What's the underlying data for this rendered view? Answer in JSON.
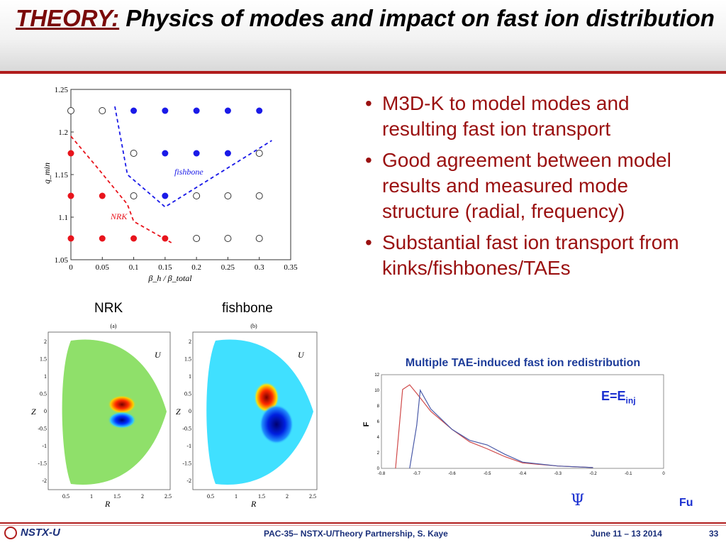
{
  "header": {
    "title_prefix": "THEORY:",
    "title_rest": "Physics of modes and impact on fast ion distribution"
  },
  "bullets": [
    "M3D-K to model modes and resulting fast ion transport",
    "Good agreement between model results and measured mode structure (radial, frequency)",
    "Substantial fast ion transport from kinks/fishbones/TAEs"
  ],
  "scatter_plot": {
    "ylabel": "q_min",
    "xlabel": "β_h / β_total",
    "xticks": [
      "0",
      "0.05",
      "0.1",
      "0.15",
      "0.2",
      "0.25",
      "0.3",
      "0.35"
    ],
    "yticks": [
      "1.25",
      "1.2",
      "1.15",
      "1.1",
      "1.05"
    ],
    "labels": {
      "nrk": "NRK",
      "fishbone": "fishbone"
    }
  },
  "mode_maps": {
    "caption_left": "NRK",
    "caption_right": "fishbone",
    "panel_a": "(a)",
    "panel_b": "(b)",
    "u_label": "U",
    "z_label": "Z",
    "r_label": "R",
    "zticks": [
      "2",
      "1.5",
      "1",
      "0.5",
      "0",
      "-0.5",
      "-1",
      "-1.5",
      "-2"
    ],
    "rticks": [
      "0.5",
      "1",
      "1.5",
      "2",
      "2.5"
    ]
  },
  "tae_plot": {
    "title": "Multiple TAE-induced fast ion redistribution",
    "ylabel": "F",
    "annotation": "E=E",
    "annotation_sub": "inj",
    "psi_label": "Ψ",
    "credit": "Fu",
    "xticks": [
      "-0.8",
      "-0.7",
      "-0.6",
      "-0.5",
      "-0.4",
      "-0.3",
      "-0.2",
      "-0.1",
      "0"
    ],
    "yticks": [
      "12",
      "10",
      "8",
      "6",
      "4",
      "2",
      "0"
    ]
  },
  "footer": {
    "logo": "NSTX-U",
    "center": "PAC-35– NSTX-U/Theory Partnership, S. Kaye",
    "date": "June 11 – 13 2014",
    "page": "33"
  },
  "chart_data": [
    {
      "type": "scatter",
      "xlabel": "β_h / β_total",
      "ylabel": "q_min",
      "xlim": [
        0,
        0.35
      ],
      "ylim": [
        1.05,
        1.25
      ],
      "series": [
        {
          "name": "NRK",
          "color": "#e8141c",
          "x": [
            0,
            0,
            0.05,
            0,
            0.05,
            0.1,
            0.15
          ],
          "y": [
            1.175,
            1.125,
            1.125,
            1.075,
            1.075,
            1.075,
            1.075
          ]
        },
        {
          "name": "fishbone",
          "color": "#1a1ae8",
          "x": [
            0.1,
            0.15,
            0.2,
            0.25,
            0.3,
            0.15,
            0.2,
            0.25,
            0.15
          ],
          "y": [
            1.225,
            1.225,
            1.225,
            1.225,
            1.225,
            1.175,
            1.175,
            1.175,
            1.125
          ]
        },
        {
          "name": "",
          "color": "#333333",
          "fill": "none",
          "x": [
            0,
            0.05,
            0.1,
            0.3,
            0.1,
            0.2,
            0.25,
            0.3,
            0.2,
            0.25,
            0.3
          ],
          "y": [
            1.225,
            1.225,
            1.175,
            1.175,
            1.125,
            1.125,
            1.125,
            1.125,
            1.075,
            1.075,
            1.075
          ]
        }
      ],
      "boundaries": [
        {
          "color": "#e8141c",
          "x": [
            0,
            0.04,
            0.09,
            0.1,
            0.16
          ],
          "y": [
            1.195,
            1.16,
            1.115,
            1.095,
            1.07
          ]
        },
        {
          "color": "#1a1ae8",
          "x": [
            0.07,
            0.09,
            0.15,
            0.32
          ],
          "y": [
            1.23,
            1.15,
            1.112,
            1.19
          ]
        }
      ]
    },
    {
      "type": "line",
      "title": "Multiple TAE-induced fast ion redistribution",
      "ylabel": "F",
      "xlim": [
        -0.8,
        0
      ],
      "ylim": [
        0,
        12
      ],
      "series": [
        {
          "name": "",
          "color": "#d04a4a",
          "x": [
            -0.76,
            -0.74,
            -0.72,
            -0.7,
            -0.66,
            -0.6,
            -0.55,
            -0.5,
            -0.45,
            -0.4,
            -0.3,
            -0.2
          ],
          "y": [
            0,
            10.1,
            10.7,
            9.6,
            7.3,
            5.0,
            3.4,
            2.5,
            1.5,
            0.7,
            0.3,
            0.1
          ]
        },
        {
          "name": "",
          "color": "#4a5aa8",
          "x": [
            -0.72,
            -0.7,
            -0.69,
            -0.66,
            -0.6,
            -0.55,
            -0.5,
            -0.45,
            -0.4,
            -0.3,
            -0.2
          ],
          "y": [
            0,
            5.5,
            10.0,
            7.6,
            5.0,
            3.6,
            3.0,
            1.8,
            0.8,
            0.3,
            0.1
          ]
        }
      ]
    }
  ]
}
